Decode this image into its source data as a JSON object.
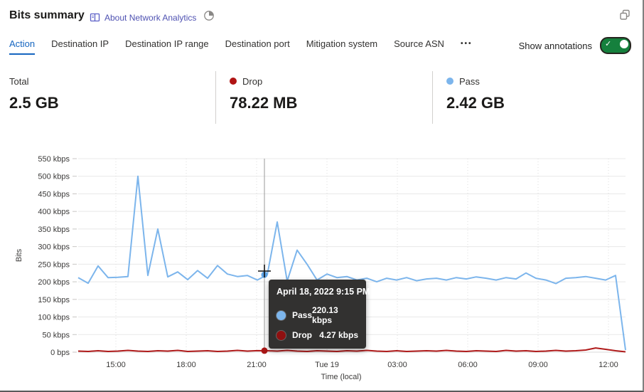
{
  "header": {
    "title": "Bits summary",
    "about_link": "About Network Analytics"
  },
  "tabs": {
    "items": [
      {
        "label": "Action",
        "active": true
      },
      {
        "label": "Destination IP",
        "active": false
      },
      {
        "label": "Destination IP range",
        "active": false
      },
      {
        "label": "Destination port",
        "active": false
      },
      {
        "label": "Mitigation system",
        "active": false
      },
      {
        "label": "Source ASN",
        "active": false
      },
      {
        "label": "•••",
        "active": false,
        "more": true
      }
    ],
    "show_annotations_label": "Show annotations",
    "annotations_on": true
  },
  "stats": {
    "cards": [
      {
        "label": "Total",
        "value": "2.5 GB",
        "dot": ""
      },
      {
        "label": "Drop",
        "value": "78.22 MB",
        "dot": "#b01414"
      },
      {
        "label": "Pass",
        "value": "2.42 GB",
        "dot": "#7cb5ec"
      }
    ]
  },
  "chart_data": {
    "type": "line",
    "xlabel": "Time (local)",
    "ylabel": "Bits",
    "unit": "kbps",
    "ylim": [
      0,
      550
    ],
    "grid": true,
    "y_tick_values": [
      0,
      50,
      100,
      150,
      200,
      250,
      300,
      350,
      400,
      450,
      500,
      550
    ],
    "y_tick_labels": [
      "0 bps",
      "50 kbps",
      "100 kbps",
      "150 kbps",
      "200 kbps",
      "250 kbps",
      "300 kbps",
      "350 kbps",
      "400 kbps",
      "450 kbps",
      "500 kbps",
      "550 kbps"
    ],
    "x_ticks": [
      "15:00",
      "18:00",
      "21:00",
      "Tue 19",
      "03:00",
      "06:00",
      "09:00",
      "12:00"
    ],
    "series": [
      {
        "name": "Pass",
        "color": "#7cb5ec",
        "values": [
          212,
          196,
          245,
          212,
          213,
          215,
          500,
          218,
          350,
          214,
          228,
          206,
          232,
          210,
          246,
          222,
          215,
          218,
          205,
          220,
          370,
          202,
          290,
          250,
          205,
          222,
          212,
          215,
          205,
          210,
          200,
          210,
          205,
          212,
          203,
          208,
          210,
          205,
          212,
          208,
          214,
          210,
          205,
          212,
          208,
          225,
          210,
          205,
          195,
          210,
          212,
          215,
          210,
          205,
          218,
          6
        ]
      },
      {
        "name": "Drop",
        "color": "#b01b1b",
        "values": [
          3,
          2,
          4,
          2,
          3,
          5,
          3,
          2,
          4,
          3,
          5,
          2,
          3,
          4,
          2,
          3,
          5,
          3,
          4.3,
          4,
          3,
          5,
          3,
          2,
          4,
          3,
          2,
          4,
          3,
          5,
          3,
          2,
          4,
          2,
          3,
          4,
          3,
          5,
          3,
          2,
          4,
          3,
          2,
          5,
          3,
          4,
          2,
          3,
          5,
          3,
          4,
          6,
          12,
          8,
          4,
          1
        ]
      }
    ],
    "hover_point": {
      "time": "April 18, 2022 9:15 PM",
      "pass_kbps": 220.13,
      "drop_kbps": 4.27
    }
  },
  "tooltip": {
    "title": "April 18, 2022 9:15 PM",
    "rows": [
      {
        "name": "Pass",
        "value": "220.13 kbps",
        "color": "#7cb5ec"
      },
      {
        "name": "Drop",
        "value": "4.27 kbps",
        "color": "#8f1010"
      }
    ]
  }
}
